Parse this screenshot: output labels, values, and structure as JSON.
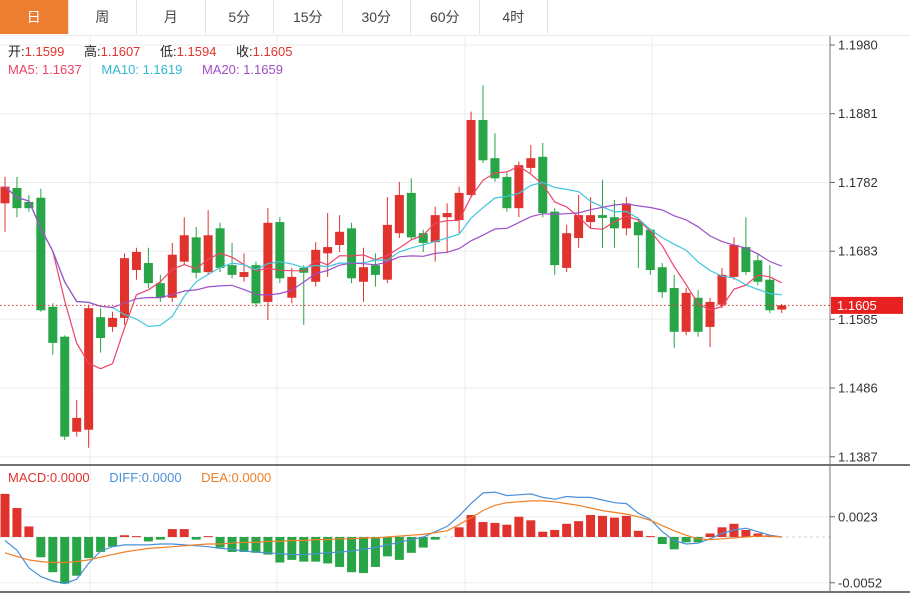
{
  "tabs": {
    "items": [
      {
        "label": "日",
        "active": true
      },
      {
        "label": "周",
        "active": false
      },
      {
        "label": "月",
        "active": false
      },
      {
        "label": "5分",
        "active": false
      },
      {
        "label": "15分",
        "active": false
      },
      {
        "label": "30分",
        "active": false
      },
      {
        "label": "60分",
        "active": false
      },
      {
        "label": "4时",
        "active": false
      }
    ]
  },
  "ohlc_legend": {
    "open_label": "开:",
    "open": "1.1599",
    "high_label": "高:",
    "high": "1.1607",
    "low_label": "低:",
    "low": "1.1594",
    "close_label": "收:",
    "close": "1.1605"
  },
  "ma_legend": {
    "ma5_label": "MA5:",
    "ma5": "1.1637",
    "ma10_label": "MA10:",
    "ma10": "1.1619",
    "ma20_label": "MA20:",
    "ma20": "1.1659"
  },
  "macd_legend": {
    "macd_label": "MACD:",
    "macd": "0.0000",
    "diff_label": "DIFF:",
    "diff": "0.0000",
    "dea_label": "DEA:",
    "dea": "0.0000"
  },
  "price_axis": {
    "tick_labels": [
      "1.1980",
      "1.1881",
      "1.1782",
      "1.1683",
      "1.1585",
      "1.1486",
      "1.1387"
    ],
    "last_price_label": "1.1605"
  },
  "macd_axis": {
    "tick_labels": [
      "0.0023",
      "-0.0052"
    ]
  },
  "colors": {
    "up": "#e1332e",
    "down": "#28a546",
    "badge": "#e8201f",
    "ma5": "#ee4468",
    "ma10": "#3fc6dc",
    "ma20": "#9d50c8",
    "diff": "#4a90d9",
    "dea": "#f07f26",
    "active_tab": "#ed7d31",
    "grid": "#ededed",
    "axis_text": "#333333",
    "divider": "#444444"
  },
  "chart_data": [
    {
      "type": "candlestick",
      "panel": "main",
      "title": "",
      "ylabel": "price",
      "y_axis_ticks": [
        1.198,
        1.1881,
        1.1782,
        1.1683,
        1.1585,
        1.1486,
        1.1387
      ],
      "last_price": 1.1605,
      "ma_periods": [
        5,
        10,
        20
      ],
      "up_means": "close >= open (red)",
      "ohlc": [
        [
          1.1752,
          1.179,
          1.1711,
          1.1776
        ],
        [
          1.1774,
          1.179,
          1.1732,
          1.1745
        ],
        [
          1.1754,
          1.1764,
          1.174,
          1.1745
        ],
        [
          1.176,
          1.1773,
          1.1596,
          1.1598
        ],
        [
          1.1603,
          1.1608,
          1.1534,
          1.1551
        ],
        [
          1.156,
          1.1562,
          1.1411,
          1.1416
        ],
        [
          1.1423,
          1.1469,
          1.1416,
          1.1443
        ],
        [
          1.1426,
          1.1606,
          1.14,
          1.1601
        ],
        [
          1.1588,
          1.1601,
          1.1537,
          1.1558
        ],
        [
          1.1574,
          1.1596,
          1.1567,
          1.1587
        ],
        [
          1.1587,
          1.168,
          1.1577,
          1.1673
        ],
        [
          1.1656,
          1.1688,
          1.1642,
          1.1682
        ],
        [
          1.1666,
          1.1688,
          1.163,
          1.1637
        ],
        [
          1.1637,
          1.1649,
          1.161,
          1.1616
        ],
        [
          1.1616,
          1.1695,
          1.161,
          1.1678
        ],
        [
          1.1668,
          1.1732,
          1.1663,
          1.1706
        ],
        [
          1.1703,
          1.1718,
          1.1644,
          1.1652
        ],
        [
          1.1653,
          1.1742,
          1.1649,
          1.1706
        ],
        [
          1.1716,
          1.1724,
          1.1653,
          1.1659
        ],
        [
          1.1663,
          1.1695,
          1.1644,
          1.1649
        ],
        [
          1.1646,
          1.168,
          1.1639,
          1.1653
        ],
        [
          1.1663,
          1.1668,
          1.1603,
          1.1608
        ],
        [
          1.161,
          1.1745,
          1.1584,
          1.1724
        ],
        [
          1.1725,
          1.1732,
          1.1637,
          1.1644
        ],
        [
          1.1616,
          1.1659,
          1.1608,
          1.1646
        ],
        [
          1.1659,
          1.1663,
          1.1577,
          1.1652
        ],
        [
          1.1639,
          1.1696,
          1.1632,
          1.1685
        ],
        [
          1.168,
          1.1738,
          1.1646,
          1.1689
        ],
        [
          1.1692,
          1.1735,
          1.1682,
          1.1711
        ],
        [
          1.1716,
          1.1724,
          1.1637,
          1.1644
        ],
        [
          1.1639,
          1.1688,
          1.161,
          1.166
        ],
        [
          1.1663,
          1.168,
          1.1632,
          1.1649
        ],
        [
          1.1642,
          1.1761,
          1.1637,
          1.1721
        ],
        [
          1.1709,
          1.1783,
          1.1702,
          1.1764
        ],
        [
          1.1767,
          1.1788,
          1.1699,
          1.1703
        ],
        [
          1.1709,
          1.1714,
          1.1682,
          1.1695
        ],
        [
          1.1696,
          1.1747,
          1.1668,
          1.1735
        ],
        [
          1.1732,
          1.1752,
          1.1682,
          1.1738
        ],
        [
          1.1728,
          1.1776,
          1.1709,
          1.1767
        ],
        [
          1.1764,
          1.1884,
          1.176,
          1.1872
        ],
        [
          1.1872,
          1.1922,
          1.181,
          1.1814
        ],
        [
          1.1817,
          1.1853,
          1.1783,
          1.1788
        ],
        [
          1.179,
          1.1796,
          1.174,
          1.1745
        ],
        [
          1.1745,
          1.1812,
          1.1732,
          1.1807
        ],
        [
          1.1803,
          1.1836,
          1.1796,
          1.1817
        ],
        [
          1.1819,
          1.1839,
          1.1732,
          1.1738
        ],
        [
          1.174,
          1.1745,
          1.1649,
          1.1663
        ],
        [
          1.1659,
          1.1721,
          1.1653,
          1.1709
        ],
        [
          1.1702,
          1.1764,
          1.1688,
          1.1735
        ],
        [
          1.1725,
          1.1761,
          1.1716,
          1.1735
        ],
        [
          1.1735,
          1.1786,
          1.1688,
          1.1731
        ],
        [
          1.1732,
          1.1757,
          1.1688,
          1.1716
        ],
        [
          1.1716,
          1.1761,
          1.1706,
          1.1752
        ],
        [
          1.1725,
          1.1731,
          1.1659,
          1.1706
        ],
        [
          1.1714,
          1.1716,
          1.1649,
          1.1656
        ],
        [
          1.166,
          1.1666,
          1.1616,
          1.1624
        ],
        [
          1.163,
          1.1649,
          1.1544,
          1.1567
        ],
        [
          1.1567,
          1.163,
          1.1562,
          1.1623
        ],
        [
          1.1616,
          1.1627,
          1.156,
          1.1567
        ],
        [
          1.1574,
          1.1616,
          1.1545,
          1.161
        ],
        [
          1.1606,
          1.1659,
          1.1601,
          1.1649
        ],
        [
          1.1646,
          1.1703,
          1.1642,
          1.1692
        ],
        [
          1.1689,
          1.1732,
          1.1649,
          1.1653
        ],
        [
          1.167,
          1.168,
          1.1634,
          1.1639
        ],
        [
          1.1642,
          1.1663,
          1.1594,
          1.1598
        ],
        [
          1.1599,
          1.1607,
          1.1594,
          1.1605
        ]
      ]
    },
    {
      "type": "macd",
      "panel": "sub",
      "y_axis_ticks": [
        0.0023,
        -0.0052
      ],
      "hist": [
        0.0049,
        0.0033,
        0.0012,
        -0.0023,
        -0.004,
        -0.0053,
        -0.0044,
        -0.0024,
        -0.0017,
        -0.0011,
        0.0002,
        0.0001,
        -0.0005,
        -0.0003,
        0.0009,
        0.0009,
        -0.0003,
        0.0001,
        -0.0012,
        -0.0017,
        -0.0017,
        -0.0018,
        -0.002,
        -0.0029,
        -0.0026,
        -0.0028,
        -0.0028,
        -0.003,
        -0.0034,
        -0.004,
        -0.0041,
        -0.0034,
        -0.0022,
        -0.0026,
        -0.0018,
        -0.0012,
        -0.0003,
        0,
        0.0011,
        0.0025,
        0.0017,
        0.0016,
        0.0014,
        0.0023,
        0.0019,
        0.0006,
        0.0008,
        0.0015,
        0.0018,
        0.0025,
        0.0024,
        0.0022,
        0.0024,
        0.0007,
        0.0001,
        -0.0008,
        -0.0014,
        -0.0006,
        -0.0006,
        0.0004,
        0.0011,
        0.0015,
        0.0008,
        0.0004,
        0.0002,
        0
      ],
      "diff": [
        -0.0004,
        -0.0015,
        -0.0035,
        -0.0045,
        -0.005,
        -0.0053,
        -0.0048,
        -0.003,
        -0.0016,
        -0.0011,
        -0.0009,
        -0.0009,
        -0.0009,
        -0.0008,
        -0.0008,
        -0.0009,
        -0.001,
        -0.0011,
        -0.0013,
        -0.0014,
        -0.0016,
        -0.0017,
        -0.0018,
        -0.0019,
        -0.002,
        -0.002,
        -0.0019,
        -0.0018,
        -0.0017,
        -0.0016,
        -0.0014,
        -0.0012,
        -0.0009,
        -0.0006,
        -0.0003,
        0,
        0.0006,
        0.0012,
        0.0024,
        0.0038,
        0.005,
        0.0051,
        0.0047,
        0.0048,
        0.0049,
        0.0045,
        0.0043,
        0.0046,
        0.0045,
        0.0045,
        0.0042,
        0.0039,
        0.0038,
        0.0027,
        0.002,
        0.0006,
        -0.0004,
        -0.0008,
        -0.0007,
        -0.0002,
        0.0004,
        0.0008,
        0.001,
        0.0006,
        0.0002,
        0
      ],
      "dea": [
        -0.0018,
        -0.0022,
        -0.0026,
        -0.0028,
        -0.0029,
        -0.0029,
        -0.0028,
        -0.0026,
        -0.0023,
        -0.002,
        -0.0017,
        -0.0015,
        -0.0013,
        -0.0012,
        -0.0011,
        -0.001,
        -0.0009,
        -0.0008,
        -0.0008,
        -0.0007,
        -0.0006,
        -0.0006,
        -0.0005,
        -0.0005,
        -0.0004,
        -0.0004,
        -0.0003,
        -0.0003,
        -0.0002,
        -0.0002,
        -0.0001,
        -0.0001,
        0,
        0.0001,
        0.0002,
        0.0003,
        0.0005,
        0.0007,
        0.0014,
        0.0022,
        0.003,
        0.0036,
        0.0039,
        0.004,
        0.0041,
        0.0041,
        0.004,
        0.0038,
        0.0036,
        0.0033,
        0.003,
        0.0028,
        0.0026,
        0.0023,
        0.0019,
        0.0013,
        0.0007,
        0.0002,
        -0.0002,
        -0.0003,
        -0.0002,
        -0.0001,
        0,
        0.0001,
        0.0001,
        0
      ]
    }
  ]
}
